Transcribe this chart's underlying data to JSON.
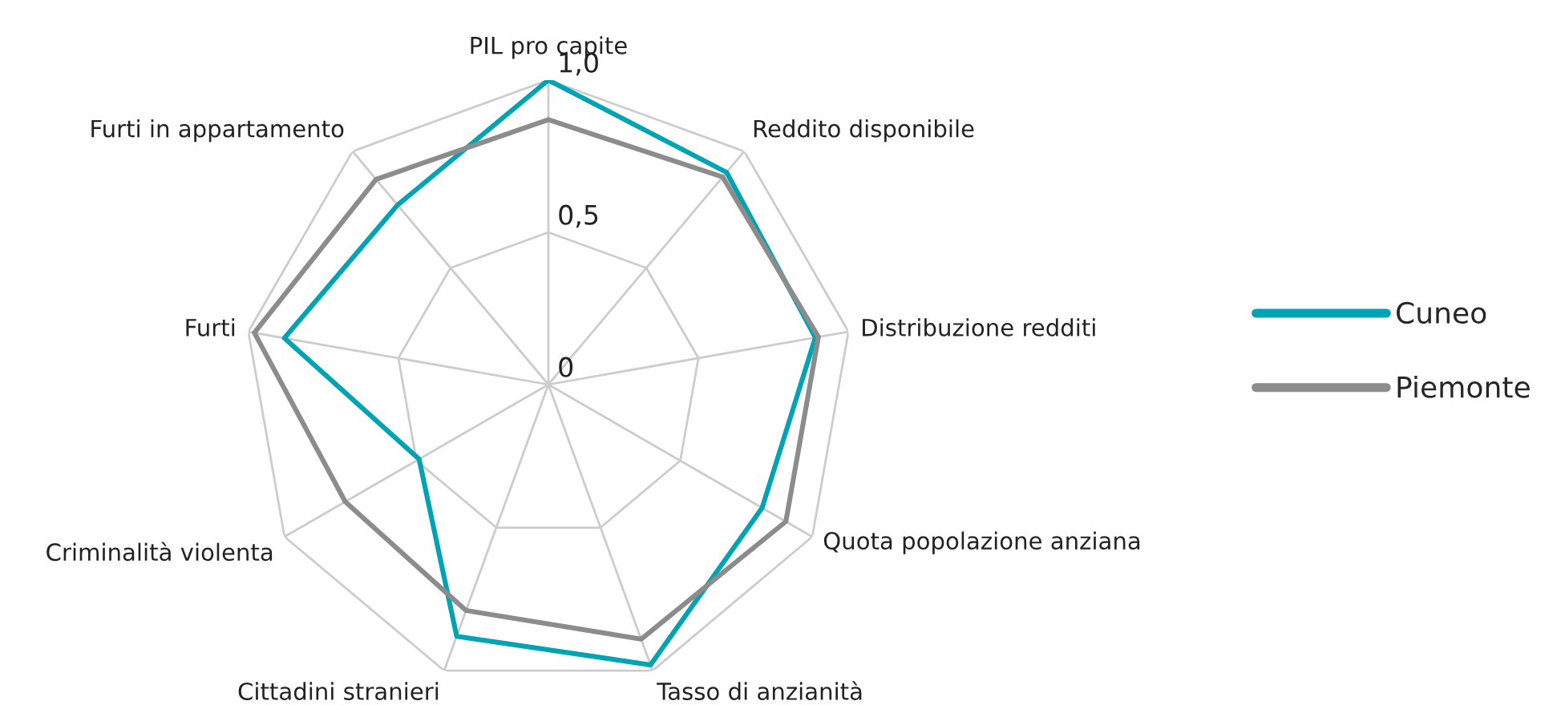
{
  "chart_data": {
    "type": "radar",
    "categories": [
      "PIL pro capite",
      "Reddito disponibile",
      "Distribuzione redditi",
      "Quota popolazione anziana",
      "Tasso di anzianità",
      "Cittadini stranieri",
      "Criminalità violenta",
      "Furti",
      "Furti in appartamento"
    ],
    "series": [
      {
        "name": "Cuneo",
        "color": "#00a3b4",
        "values": [
          1.0,
          0.91,
          0.89,
          0.81,
          0.98,
          0.88,
          0.49,
          0.88,
          0.77
        ]
      },
      {
        "name": "Piemonte",
        "color": "#8c8c8c",
        "values": [
          0.87,
          0.89,
          0.9,
          0.9,
          0.89,
          0.79,
          0.77,
          0.98,
          0.88
        ]
      }
    ],
    "ylim": [
      0,
      1.0
    ],
    "yticks": [
      {
        "value": 0,
        "label": "0"
      },
      {
        "value": 0.5,
        "label": "0,5"
      },
      {
        "value": 1.0,
        "label": "1,0"
      }
    ],
    "grid": true,
    "legend": "right",
    "marker": "none",
    "line_style": "solid"
  }
}
